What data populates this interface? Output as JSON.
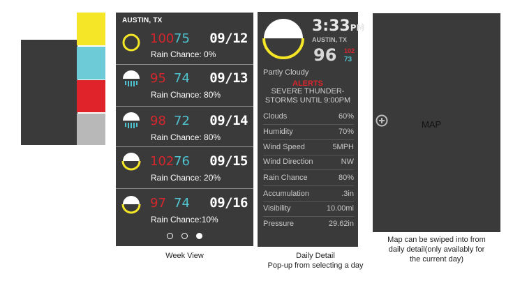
{
  "palette": {
    "yellow": "#f5e627",
    "cyan": "#6dcbd8",
    "red": "#e0232b",
    "gray": "#b8b8b8",
    "dark": "#3a3a3a"
  },
  "week_view": {
    "city": "AUSTIN, TX",
    "days": [
      {
        "icon": "sun-icon",
        "high": "100",
        "low": "75",
        "date": "09/12",
        "rain": "Rain Chance: 0%"
      },
      {
        "icon": "rain-icon",
        "high": "95",
        "low": "74",
        "date": "09/13",
        "rain": "Rain Chance: 80%"
      },
      {
        "icon": "rain-icon",
        "high": "98",
        "low": "72",
        "date": "09/14",
        "rain": "Rain Chance: 80%"
      },
      {
        "icon": "partly-cloudy-icon",
        "high": "102",
        "low": "76",
        "date": "09/15",
        "rain": "Rain Chance: 20%"
      },
      {
        "icon": "partly-cloudy-icon",
        "high": "97",
        "low": "74",
        "date": "09/16",
        "rain": "Rain Chance:10%"
      }
    ],
    "page_dots": 3,
    "active_dot": 3,
    "caption": "Week View"
  },
  "daily_detail": {
    "icon": "partly-cloudy-icon",
    "time": "3:33",
    "ampm": "PM",
    "city": "AUSTIN, TX",
    "temp": "96",
    "high": "102",
    "low": "73",
    "condition": "Partly Cloudy",
    "alerts_title": "ALERTS",
    "alert_line1": "SEVERE THUNDER-",
    "alert_line2": "STORMS UNTIL 9:00PM",
    "stats": [
      {
        "label": "Clouds",
        "value": "60%"
      },
      {
        "label": "Humidity",
        "value": "70%"
      },
      {
        "label": "Wind Speed",
        "value": "5MPH"
      },
      {
        "label": "Wind Direction",
        "value": "NW"
      },
      {
        "label": "Rain Chance",
        "value": "80%"
      },
      {
        "label": "Accumulation",
        "value": ".3in"
      },
      {
        "label": "Visibility",
        "value": "10.00mi"
      },
      {
        "label": "Pressure",
        "value": "29.62in"
      }
    ],
    "caption_line1": "Daily Detail",
    "caption_line2": "Pop-up from selecting a day"
  },
  "map_panel": {
    "label": "MAP",
    "caption_line1": "Map can be swiped into from",
    "caption_line2": "daily detail(only availably for",
    "caption_line3": "the current day)"
  }
}
